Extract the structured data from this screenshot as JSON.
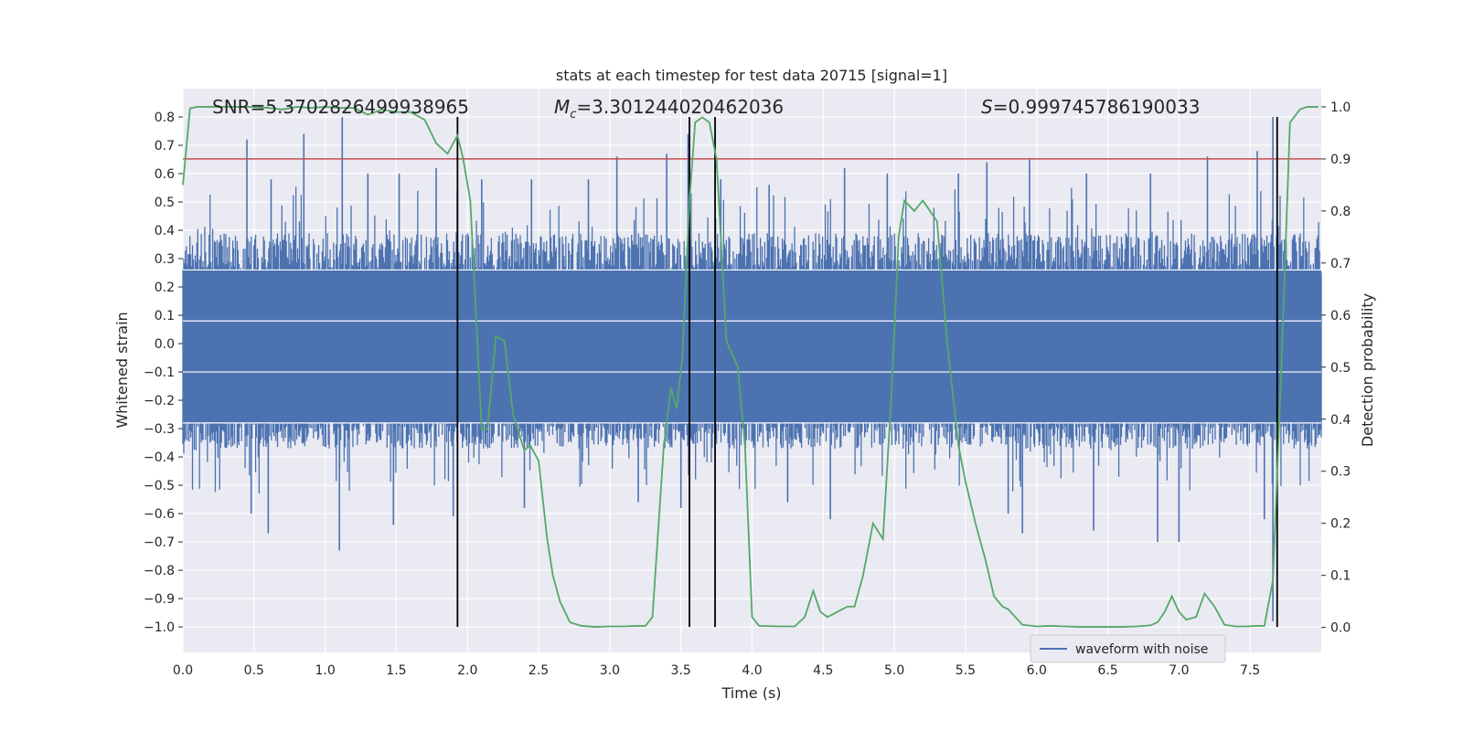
{
  "chart_data": {
    "type": "line",
    "title": "stats at each timestep for test data 20715 [signal=1]",
    "xlabel": "Time (s)",
    "ylabel": "Whitened strain",
    "y2label": "Detection probability",
    "xlim": [
      0.0,
      8.0
    ],
    "ylim": [
      -1.09,
      0.9
    ],
    "y2lim": [
      -0.048,
      1.035
    ],
    "xticks": [
      0.0,
      0.5,
      1.0,
      1.5,
      2.0,
      2.5,
      3.0,
      3.5,
      4.0,
      4.5,
      5.0,
      5.5,
      6.0,
      6.5,
      7.0,
      7.5
    ],
    "xtick_labels": [
      "0.0",
      "0.5",
      "1.0",
      "1.5",
      "2.0",
      "2.5",
      "3.0",
      "3.5",
      "4.0",
      "4.5",
      "5.0",
      "5.5",
      "6.0",
      "6.5",
      "7.0",
      "7.5"
    ],
    "yticks": [
      0.8,
      0.7,
      0.6,
      0.5,
      0.4,
      0.3,
      0.2,
      0.1,
      0.0,
      -0.1,
      -0.2,
      -0.3,
      -0.4,
      -0.5,
      -0.6,
      -0.7,
      -0.8,
      -0.9,
      -1.0
    ],
    "ytick_labels": [
      "0.8",
      "0.7",
      "0.6",
      "0.5",
      "0.4",
      "0.3",
      "0.2",
      "0.1",
      "0.0",
      "−0.1",
      "−0.2",
      "−0.3",
      "−0.4",
      "−0.5",
      "−0.6",
      "−0.7",
      "−0.8",
      "−0.9",
      "−1.0"
    ],
    "y2ticks": [
      1.0,
      0.9,
      0.8,
      0.7,
      0.6,
      0.5,
      0.4,
      0.3,
      0.2,
      0.1,
      0.0
    ],
    "y2tick_labels": [
      "1.0",
      "0.9",
      "0.8",
      "0.7",
      "0.6",
      "0.5",
      "0.4",
      "0.3",
      "0.2",
      "0.1",
      "0.0"
    ],
    "grid": true,
    "legend": {
      "placement": "lower-right",
      "entries": [
        "waveform with noise"
      ]
    },
    "annotations": [
      {
        "label": "SNR",
        "value": "=5.3702826499938965"
      },
      {
        "label": "Mc",
        "value": "=3.301244020462036"
      },
      {
        "label": "S",
        "value": "=0.999745786190033"
      }
    ],
    "waveform": {
      "name": "waveform with noise",
      "color": "#4c72b0",
      "description_envelope_upper": 0.4,
      "description_envelope_lower": -0.38,
      "spikes": [
        {
          "x": 0.45,
          "y": 0.72
        },
        {
          "x": 0.62,
          "y": 0.58
        },
        {
          "x": 0.85,
          "y": 0.74
        },
        {
          "x": 1.12,
          "y": 0.8
        },
        {
          "x": 1.3,
          "y": 0.6
        },
        {
          "x": 1.52,
          "y": 0.6
        },
        {
          "x": 1.78,
          "y": 0.62
        },
        {
          "x": 2.1,
          "y": 0.58
        },
        {
          "x": 2.45,
          "y": 0.58
        },
        {
          "x": 2.85,
          "y": 0.58
        },
        {
          "x": 3.05,
          "y": 0.66
        },
        {
          "x": 3.4,
          "y": 0.67
        },
        {
          "x": 3.55,
          "y": 0.74
        },
        {
          "x": 3.78,
          "y": 0.58
        },
        {
          "x": 4.12,
          "y": 0.56
        },
        {
          "x": 4.65,
          "y": 0.62
        },
        {
          "x": 4.95,
          "y": 0.6
        },
        {
          "x": 5.45,
          "y": 0.6
        },
        {
          "x": 5.65,
          "y": 0.64
        },
        {
          "x": 5.95,
          "y": 0.65
        },
        {
          "x": 6.35,
          "y": 0.6
        },
        {
          "x": 6.8,
          "y": 0.6
        },
        {
          "x": 7.2,
          "y": 0.66
        },
        {
          "x": 7.55,
          "y": 0.68
        },
        {
          "x": 7.66,
          "y": 0.8
        },
        {
          "x": 0.48,
          "y": -0.6
        },
        {
          "x": 0.6,
          "y": -0.67
        },
        {
          "x": 1.1,
          "y": -0.73
        },
        {
          "x": 1.48,
          "y": -0.64
        },
        {
          "x": 1.9,
          "y": -0.61
        },
        {
          "x": 2.4,
          "y": -0.58
        },
        {
          "x": 3.2,
          "y": -0.56
        },
        {
          "x": 3.5,
          "y": -0.58
        },
        {
          "x": 4.25,
          "y": -0.56
        },
        {
          "x": 4.55,
          "y": -0.62
        },
        {
          "x": 5.8,
          "y": -0.6
        },
        {
          "x": 5.9,
          "y": -0.67
        },
        {
          "x": 6.4,
          "y": -0.66
        },
        {
          "x": 6.85,
          "y": -0.7
        },
        {
          "x": 7.0,
          "y": -0.7
        },
        {
          "x": 7.6,
          "y": -0.62
        },
        {
          "x": 7.66,
          "y": -0.98
        }
      ]
    },
    "probability": {
      "color": "#55a868",
      "x": [
        0.0,
        0.05,
        0.1,
        0.2,
        0.3,
        0.4,
        0.5,
        0.6,
        0.7,
        0.8,
        0.9,
        1.0,
        1.1,
        1.2,
        1.3,
        1.4,
        1.5,
        1.6,
        1.7,
        1.78,
        1.86,
        1.93,
        1.97,
        2.02,
        2.1,
        2.14,
        2.2,
        2.26,
        2.32,
        2.4,
        2.44,
        2.5,
        2.56,
        2.6,
        2.65,
        2.72,
        2.8,
        2.9,
        3.0,
        3.1,
        3.2,
        3.25,
        3.3,
        3.38,
        3.43,
        3.47,
        3.51,
        3.56,
        3.6,
        3.65,
        3.7,
        3.75,
        3.82,
        3.9,
        3.95,
        4.0,
        4.05,
        4.2,
        4.3,
        4.37,
        4.43,
        4.48,
        4.53,
        4.6,
        4.67,
        4.72,
        4.78,
        4.85,
        4.92,
        4.98,
        5.03,
        5.07,
        5.14,
        5.2,
        5.25,
        5.3,
        5.37,
        5.45,
        5.5,
        5.57,
        5.64,
        5.7,
        5.76,
        5.8,
        5.85,
        5.9,
        6.0,
        6.1,
        6.2,
        6.3,
        6.4,
        6.5,
        6.6,
        6.7,
        6.8,
        6.85,
        6.9,
        6.95,
        7.0,
        7.05,
        7.12,
        7.18,
        7.25,
        7.32,
        7.4,
        7.48,
        7.55,
        7.6,
        7.66,
        7.72,
        7.78,
        7.85,
        7.9,
        7.98
      ],
      "y": [
        0.85,
        0.997,
        1.0,
        1.0,
        1.0,
        1.0,
        1.0,
        0.998,
        0.995,
        1.0,
        0.998,
        1.0,
        0.998,
        0.998,
        0.985,
        0.995,
        0.99,
        0.99,
        0.975,
        0.93,
        0.91,
        0.945,
        0.9,
        0.82,
        0.38,
        0.38,
        0.56,
        0.55,
        0.41,
        0.34,
        0.35,
        0.32,
        0.17,
        0.1,
        0.05,
        0.01,
        0.003,
        0.001,
        0.002,
        0.002,
        0.003,
        0.003,
        0.02,
        0.35,
        0.46,
        0.42,
        0.52,
        0.82,
        0.97,
        0.98,
        0.97,
        0.9,
        0.55,
        0.5,
        0.35,
        0.02,
        0.003,
        0.002,
        0.002,
        0.02,
        0.07,
        0.03,
        0.02,
        0.03,
        0.04,
        0.04,
        0.1,
        0.2,
        0.17,
        0.45,
        0.75,
        0.82,
        0.8,
        0.82,
        0.8,
        0.78,
        0.55,
        0.35,
        0.28,
        0.2,
        0.13,
        0.06,
        0.04,
        0.035,
        0.02,
        0.005,
        0.002,
        0.003,
        0.002,
        0.001,
        0.001,
        0.001,
        0.001,
        0.002,
        0.004,
        0.01,
        0.03,
        0.06,
        0.03,
        0.015,
        0.02,
        0.065,
        0.04,
        0.005,
        0.002,
        0.002,
        0.003,
        0.003,
        0.09,
        0.5,
        0.97,
        0.995,
        1.0,
        1.0
      ]
    },
    "threshold": {
      "color": "#c44e52",
      "y2": 0.9
    },
    "vertical_lines": [
      1.93,
      3.56,
      3.74,
      7.69
    ]
  }
}
